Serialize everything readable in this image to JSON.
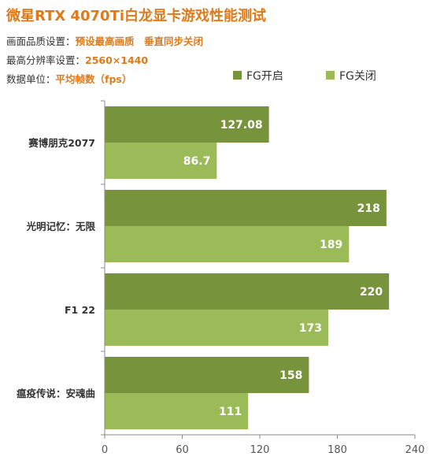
{
  "header": {
    "title": "微星RTX 4070Ti白龙显卡游戏性能测试",
    "quality_label": "画面品质设置：",
    "quality_value": "预设最高画质　垂直同步关闭",
    "resolution_label": "最高分辨率设置：",
    "resolution_value": "2560×1440",
    "unit_label": "数据单位：",
    "unit_value": "平均帧数（fps）"
  },
  "colors": {
    "fg_on": "#77933c",
    "fg_off": "#9bbb59",
    "axis": "#888888"
  },
  "chart_data": {
    "type": "bar",
    "orientation": "horizontal",
    "categories": [
      "赛博朋克2077",
      "光明记忆：无限",
      "F1 22",
      "瘟疫传说：安魂曲"
    ],
    "series": [
      {
        "name": "FG开启",
        "values": [
          127.08,
          218,
          220,
          158
        ]
      },
      {
        "name": "FG关闭",
        "values": [
          86.7,
          189,
          173,
          111
        ]
      }
    ],
    "value_labels": [
      [
        "127.08",
        "218",
        "220",
        "158"
      ],
      [
        "86.7",
        "189",
        "173",
        "111"
      ]
    ],
    "xlim": [
      0,
      240
    ],
    "xticks": [
      "0",
      "60",
      "120",
      "180",
      "240"
    ],
    "legend_position": "top-right",
    "grid": false
  }
}
